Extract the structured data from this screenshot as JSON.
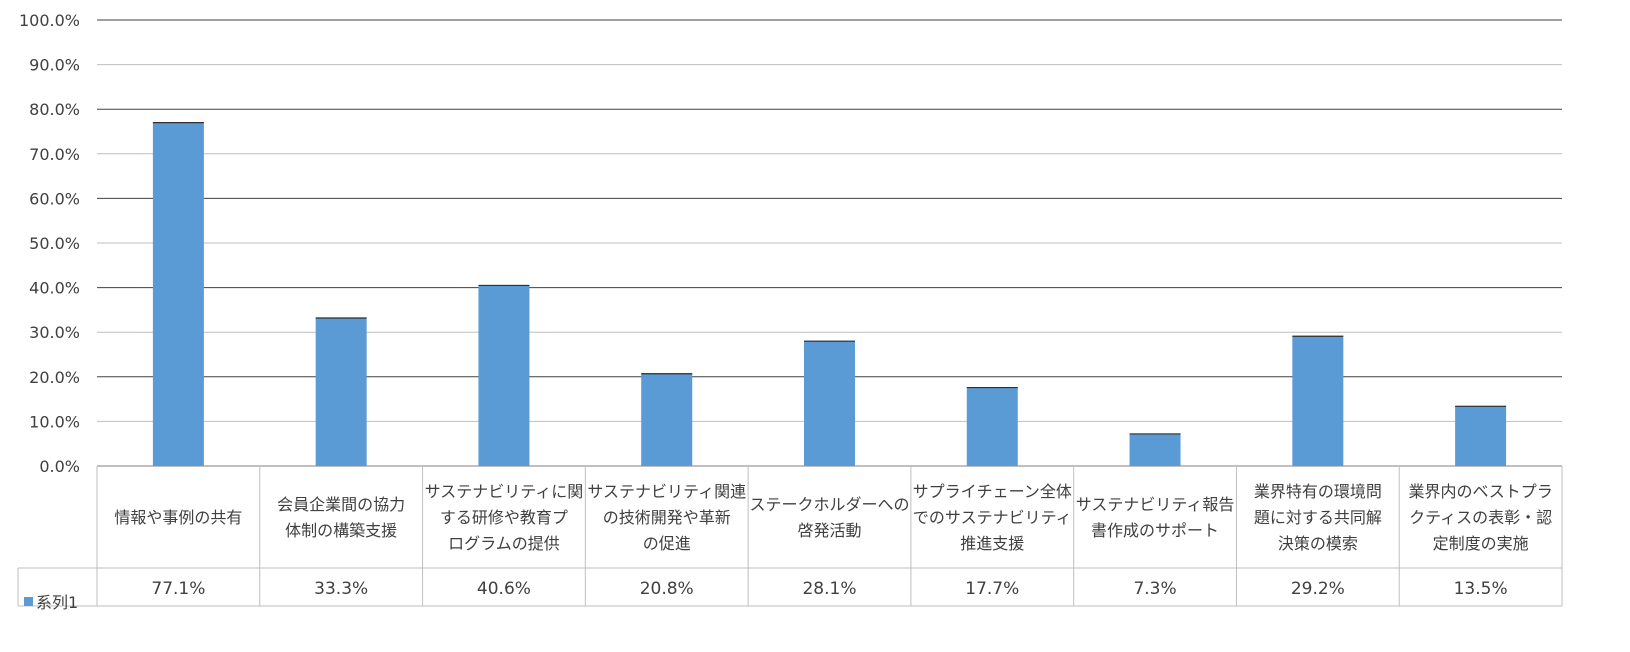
{
  "chart_data": {
    "type": "bar",
    "title": "",
    "xlabel": "",
    "ylabel": "",
    "ylim": [
      0,
      100
    ],
    "y_tick_step": 10,
    "y_tick_labels": [
      "0.0%",
      "10.0%",
      "20.0%",
      "30.0%",
      "40.0%",
      "50.0%",
      "60.0%",
      "70.0%",
      "80.0%",
      "90.0%",
      "100.0%"
    ],
    "grid": true,
    "legend_placement": "data-table-left",
    "bar_color": "#5b9bd5",
    "categories": [
      [
        "情報や事例の共有"
      ],
      [
        "会員企業間の協力",
        "体制の構築支援"
      ],
      [
        "サステナビリティに関",
        "する研修や教育プ",
        "ログラムの提供"
      ],
      [
        "サステナビリティ関連",
        "の技術開発や革新",
        "の促進"
      ],
      [
        "ステークホルダーへの",
        "啓発活動"
      ],
      [
        "サプライチェーン全体",
        "でのサステナビリティ",
        "推進支援"
      ],
      [
        "サステナビリティ報告",
        "書作成のサポート"
      ],
      [
        "業界特有の環境問",
        "題に対する共同解",
        "決策の模索"
      ],
      [
        "業界内のベストプラ",
        "クティスの表彰・認",
        "定制度の実施"
      ]
    ],
    "series": [
      {
        "name": "系列1",
        "values": [
          77.1,
          33.3,
          40.6,
          20.8,
          28.1,
          17.7,
          7.3,
          29.2,
          13.5
        ],
        "value_labels": [
          "77.1%",
          "33.3%",
          "40.6%",
          "20.8%",
          "28.1%",
          "17.7%",
          "7.3%",
          "29.2%",
          "13.5%"
        ]
      }
    ]
  }
}
